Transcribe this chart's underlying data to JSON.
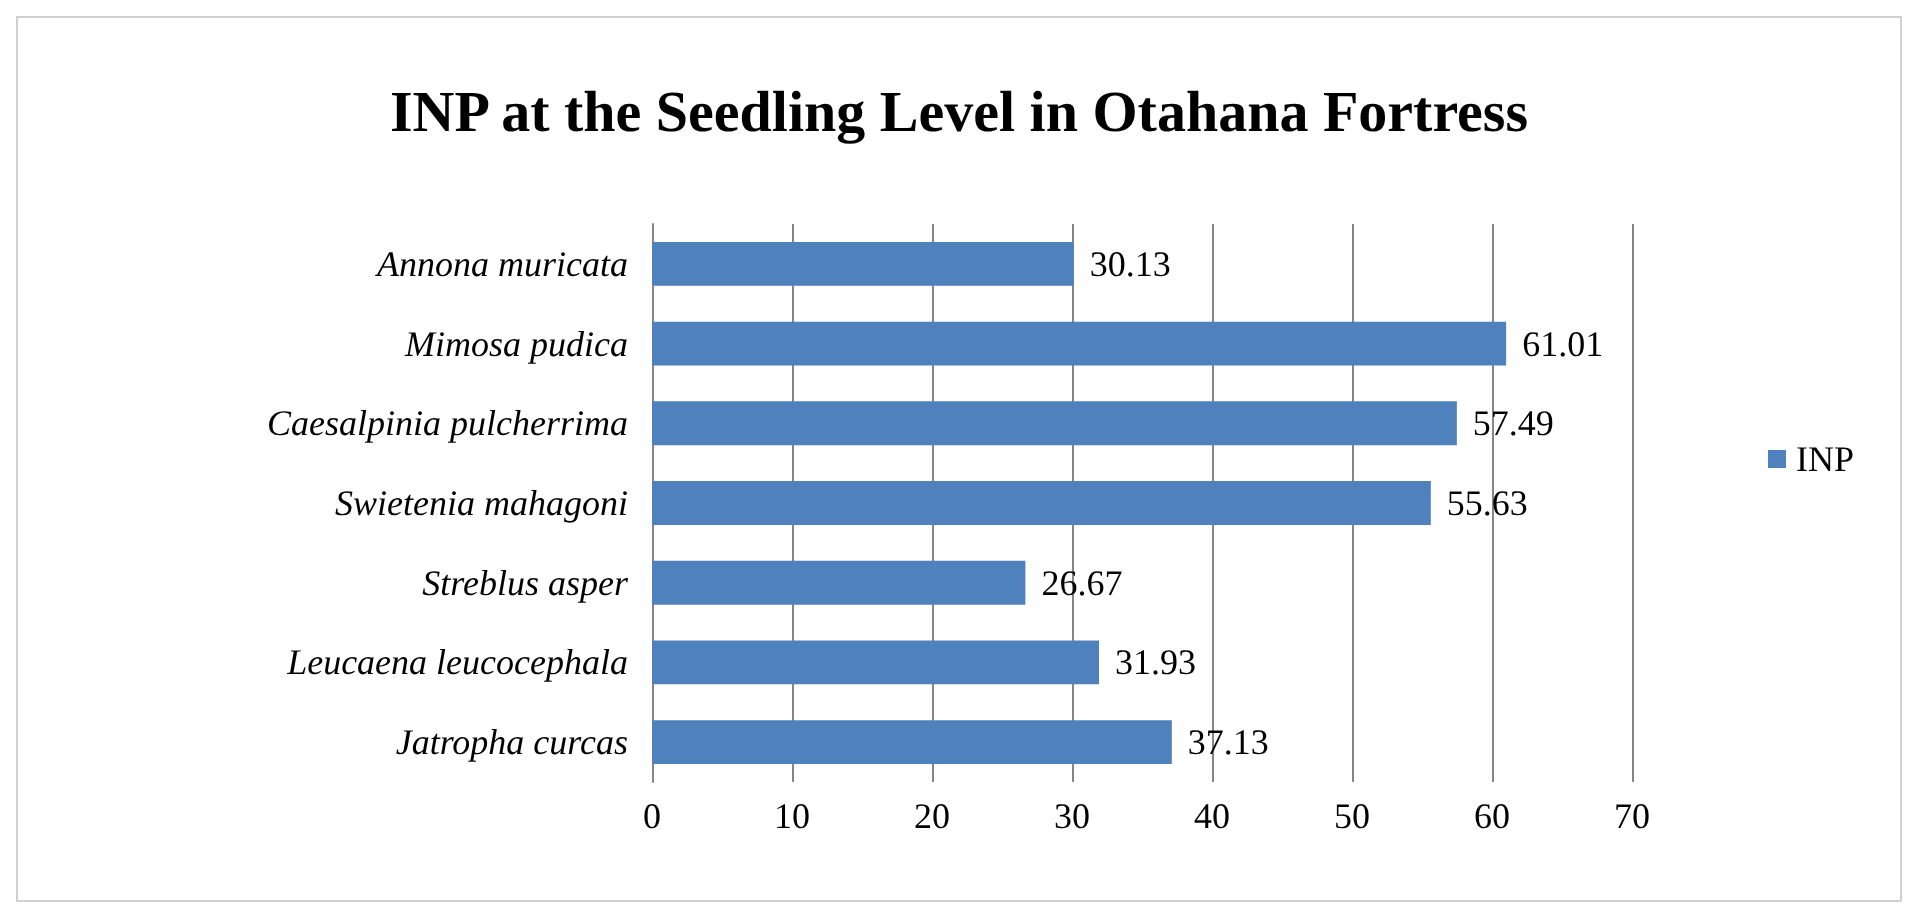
{
  "chart_data": {
    "type": "bar",
    "orientation": "horizontal",
    "title": "INP at the Seedling Level in Otahana Fortress",
    "categories": [
      "Annona muricata",
      "Mimosa pudica",
      "Caesalpinia pulcherrima",
      "Swietenia mahagoni",
      "Streblus asper",
      "Leucaena leucocephala",
      "Jatropha curcas"
    ],
    "series": [
      {
        "name": "INP",
        "color": "#4f81bd",
        "values": [
          30.13,
          61.01,
          57.49,
          55.63,
          26.67,
          31.93,
          37.13
        ]
      }
    ],
    "xlim": [
      0,
      70
    ],
    "xticks": [
      0,
      10,
      20,
      30,
      40,
      50,
      60,
      70
    ],
    "grid": "x",
    "legend": "right",
    "data_labels": true
  }
}
